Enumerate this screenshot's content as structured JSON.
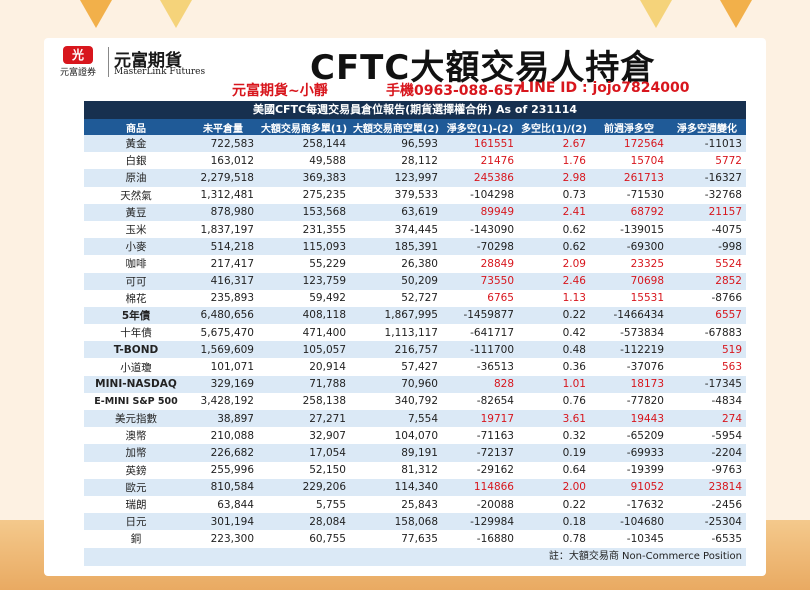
{
  "brand": {
    "logo_mark": "光",
    "logo_sub": "元富證券",
    "name": "元富期貨",
    "name_en": "MasterLink Futures"
  },
  "title": "CFTC大額交易人持倉",
  "contact": {
    "agent": "元富期貨~小靜",
    "phone": "手機0963-088-657",
    "line": "LINE ID : jojo7824000"
  },
  "report_header": "美國CFTC每週交易員倉位報告(期貨選擇權合併) As of  231114",
  "columns": [
    "商品",
    "未平倉量",
    "大額交易商多單(1)",
    "大額交易商空單(2)",
    "淨多空(1)-(2)",
    "多空比(1)/(2)",
    "前週淨多空",
    "淨多空週變化"
  ],
  "rows": [
    {
      "name": "黃金",
      "oi": "722,583",
      "long": "258,144",
      "short": "96,593",
      "net": "161551",
      "ratio": "2.67",
      "prev": "172564",
      "chg": "-11013"
    },
    {
      "name": "白銀",
      "oi": "163,012",
      "long": "49,588",
      "short": "28,112",
      "net": "21476",
      "ratio": "1.76",
      "prev": "15704",
      "chg": "5772"
    },
    {
      "name": "原油",
      "oi": "2,279,518",
      "long": "369,383",
      "short": "123,997",
      "net": "245386",
      "ratio": "2.98",
      "prev": "261713",
      "chg": "-16327"
    },
    {
      "name": "天然氣",
      "oi": "1,312,481",
      "long": "275,235",
      "short": "379,533",
      "net": "-104298",
      "ratio": "0.73",
      "prev": "-71530",
      "chg": "-32768"
    },
    {
      "name": "黃豆",
      "oi": "878,980",
      "long": "153,568",
      "short": "63,619",
      "net": "89949",
      "ratio": "2.41",
      "prev": "68792",
      "chg": "21157"
    },
    {
      "name": "玉米",
      "oi": "1,837,197",
      "long": "231,355",
      "short": "374,445",
      "net": "-143090",
      "ratio": "0.62",
      "prev": "-139015",
      "chg": "-4075"
    },
    {
      "name": "小麥",
      "oi": "514,218",
      "long": "115,093",
      "short": "185,391",
      "net": "-70298",
      "ratio": "0.62",
      "prev": "-69300",
      "chg": "-998"
    },
    {
      "name": "咖啡",
      "oi": "217,417",
      "long": "55,229",
      "short": "26,380",
      "net": "28849",
      "ratio": "2.09",
      "prev": "23325",
      "chg": "5524"
    },
    {
      "name": "可可",
      "oi": "416,317",
      "long": "123,759",
      "short": "50,209",
      "net": "73550",
      "ratio": "2.46",
      "prev": "70698",
      "chg": "2852"
    },
    {
      "name": "棉花",
      "oi": "235,893",
      "long": "59,492",
      "short": "52,727",
      "net": "6765",
      "ratio": "1.13",
      "prev": "15531",
      "chg": "-8766"
    },
    {
      "name": "5年債",
      "oi": "6,480,656",
      "long": "408,118",
      "short": "1,867,995",
      "net": "-1459877",
      "ratio": "0.22",
      "prev": "-1466434",
      "chg": "6557"
    },
    {
      "name": "十年債",
      "oi": "5,675,470",
      "long": "471,400",
      "short": "1,113,117",
      "net": "-641717",
      "ratio": "0.42",
      "prev": "-573834",
      "chg": "-67883"
    },
    {
      "name": "T-BOND",
      "oi": "1,569,609",
      "long": "105,057",
      "short": "216,757",
      "net": "-111700",
      "ratio": "0.48",
      "prev": "-112219",
      "chg": "519"
    },
    {
      "name": "小道瓊",
      "oi": "101,071",
      "long": "20,914",
      "short": "57,427",
      "net": "-36513",
      "ratio": "0.36",
      "prev": "-37076",
      "chg": "563"
    },
    {
      "name": "MINI-NASDAQ",
      "oi": "329,169",
      "long": "71,788",
      "short": "70,960",
      "net": "828",
      "ratio": "1.01",
      "prev": "18173",
      "chg": "-17345"
    },
    {
      "name": "E-MINI S&P 500",
      "oi": "3,428,192",
      "long": "258,138",
      "short": "340,792",
      "net": "-82654",
      "ratio": "0.76",
      "prev": "-77820",
      "chg": "-4834"
    },
    {
      "name": "美元指數",
      "oi": "38,897",
      "long": "27,271",
      "short": "7,554",
      "net": "19717",
      "ratio": "3.61",
      "prev": "19443",
      "chg": "274"
    },
    {
      "name": "澳幣",
      "oi": "210,088",
      "long": "32,907",
      "short": "104,070",
      "net": "-71163",
      "ratio": "0.32",
      "prev": "-65209",
      "chg": "-5954"
    },
    {
      "name": "加幣",
      "oi": "226,682",
      "long": "17,054",
      "short": "89,191",
      "net": "-72137",
      "ratio": "0.19",
      "prev": "-69933",
      "chg": "-2204"
    },
    {
      "name": "英鎊",
      "oi": "255,996",
      "long": "52,150",
      "short": "81,312",
      "net": "-29162",
      "ratio": "0.64",
      "prev": "-19399",
      "chg": "-9763"
    },
    {
      "name": "歐元",
      "oi": "810,584",
      "long": "229,206",
      "short": "114,340",
      "net": "114866",
      "ratio": "2.00",
      "prev": "91052",
      "chg": "23814"
    },
    {
      "name": "瑞朗",
      "oi": "63,844",
      "long": "5,755",
      "short": "25,843",
      "net": "-20088",
      "ratio": "0.22",
      "prev": "-17632",
      "chg": "-2456"
    },
    {
      "name": "日元",
      "oi": "301,194",
      "long": "28,084",
      "short": "158,068",
      "net": "-129984",
      "ratio": "0.18",
      "prev": "-104680",
      "chg": "-25304"
    },
    {
      "name": "銅",
      "oi": "223,300",
      "long": "60,755",
      "short": "77,635",
      "net": "-16880",
      "ratio": "0.78",
      "prev": "-10345",
      "chg": "-6535"
    }
  ],
  "footnote": "註：大額交易商 Non-Commerce Position",
  "colors": {
    "header_dark": "#17304f",
    "header_blue": "#1f5a97",
    "stripe": "#dbe9f6",
    "red": "#d8161d"
  }
}
